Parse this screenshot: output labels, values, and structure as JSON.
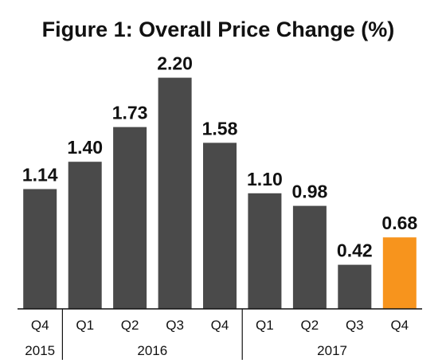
{
  "chart_data": {
    "type": "bar",
    "title": "Figure 1: Overall Price Change (%)",
    "categories": [
      "Q4",
      "Q1",
      "Q2",
      "Q3",
      "Q4",
      "Q1",
      "Q2",
      "Q3",
      "Q4"
    ],
    "years": [
      {
        "label": "2015",
        "span": [
          0,
          0
        ]
      },
      {
        "label": "2016",
        "span": [
          1,
          4
        ]
      },
      {
        "label": "2017",
        "span": [
          5,
          8
        ]
      }
    ],
    "values": [
      1.14,
      1.4,
      1.73,
      2.2,
      1.58,
      1.1,
      0.98,
      0.42,
      0.68
    ],
    "value_labels": [
      "1.14",
      "1.40",
      "1.73",
      "2.20",
      "1.58",
      "1.10",
      "0.98",
      "0.42",
      "0.68"
    ],
    "colors": {
      "default": "#4a4a4a",
      "highlight": "#f7941d",
      "highlight_index": 8
    },
    "ylim": [
      0,
      2.2
    ],
    "xlabel": "",
    "ylabel": "",
    "grid": false,
    "legend": "none"
  }
}
